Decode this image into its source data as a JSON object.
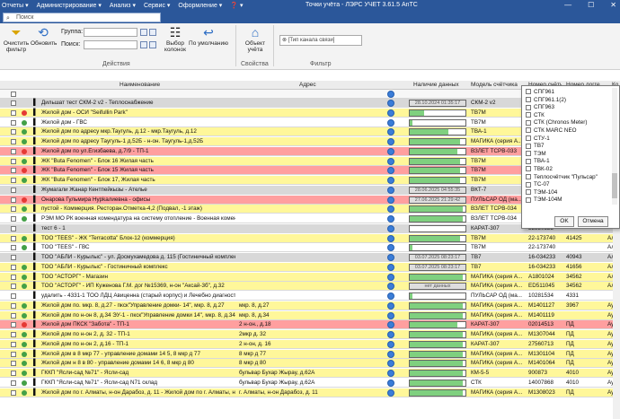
{
  "titlebar": {
    "menus": [
      "Отчеты ▾",
      "Администрирование ▾",
      "Анализ ▾",
      "Сервис ▾",
      "Оформление ▾",
      "❓ ▾"
    ],
    "title": "Точки учёта - ЛЭРС УЧЕТ 3.61.5 AnTC",
    "minimize": "—",
    "maximize": "☐",
    "close": "✕"
  },
  "search": {
    "placeholder": "Поиск"
  },
  "ribbon": {
    "clear_filter": "Очистить фильтр",
    "refresh": "Обновить",
    "group_label": "Группа:",
    "search_label": "Поиск:",
    "show_columns": "Выбор колонок",
    "default": "По умолчанию",
    "object": "Объект учёта",
    "actions_group": "Действия",
    "properties_group": "Свойства",
    "filter_group": "Фильтр",
    "channel_chip": "[Тип канала связи]"
  },
  "columns": {
    "name": "Наименование",
    "address": "Адрес",
    "data": "Наличие данных",
    "model": "Модель счётчика",
    "meter_num": "Номер счётч",
    "log_num": "Номер логгер",
    "last": "Ко"
  },
  "popup": {
    "items": [
      "СПГ961",
      "СПГ961.1(2)",
      "СПГ963",
      "СТК",
      "СТК (Chronos Meter)",
      "СТК MARC NEO",
      "СТУ-1",
      "ТВ7",
      "ТЭМ",
      "ТВА-1",
      "ТВК-02",
      "Теплосчётчик \"Пульсар\"",
      "ТС-07",
      "ТЭМ-104",
      "ТЭМ-104М"
    ],
    "ok": "OK",
    "cancel": "Отмена"
  },
  "rows": [
    {
      "name": "Дильшат тест СКМ-2 v2 - Теплоснабжение",
      "addr": "",
      "bar": "28.10.2024 01:35:17",
      "fill": 0,
      "model": "СКМ-2 v2",
      "num": "",
      "log": "",
      "last": "",
      "bg": "#d8d8d8",
      "dot": ""
    },
    {
      "name": "Жилой дом - ОСИ \"Seifullin Park\"",
      "addr": "",
      "bar": "",
      "fill": 0.25,
      "model": "ТВ7М",
      "num": "",
      "log": "",
      "last": "",
      "bg": "#fff79a",
      "dot": "#e53935"
    },
    {
      "name": "Жилой дом - ГВС",
      "addr": "",
      "bar": "",
      "fill": 0.05,
      "model": "ТВ7М",
      "num": "",
      "log": "",
      "last": "",
      "bg": "#ffffff",
      "dot": "#43a047"
    },
    {
      "name": "Жилой дом по адресу мкр.Таугуль, д.12 - мкр.Таугуль, д.12",
      "addr": "",
      "bar": "",
      "fill": 0.7,
      "model": "ТВА-1",
      "num": "",
      "log": "",
      "last": "",
      "bg": "#fff79a",
      "dot": "#43a047"
    },
    {
      "name": "Жилой дом по адресу Таугуль-1 д.52Б - н-он. Таугуль-1,д.52Б",
      "addr": "",
      "bar": "",
      "fill": 0.9,
      "model": "МАГИКА (серия А...",
      "num": "",
      "log": "",
      "last": "",
      "bg": "#fff79a",
      "dot": "#43a047"
    },
    {
      "name": "Жилой дом по ул.Егизбаева, д.7/9 - ТП-1",
      "addr": "",
      "bar": "",
      "fill": 0.85,
      "model": "ВЗЛЕТ ТСРВ-033",
      "num": "",
      "log": "",
      "last": "",
      "bg": "#ff9f9f",
      "dot": "#e53935"
    },
    {
      "name": "ЖК \"Buta Fenomen\" - Блок 16 Жилая часть",
      "addr": "",
      "bar": "",
      "fill": 0.9,
      "model": "ТВ7М",
      "num": "",
      "log": "",
      "last": "",
      "bg": "#fff79a",
      "dot": "#43a047"
    },
    {
      "name": "ЖК \"Buta Fenomen\" - Блок 15 Жилая часть",
      "addr": "",
      "bar": "",
      "fill": 0.9,
      "model": "ТВ7М",
      "num": "",
      "log": "",
      "last": "",
      "bg": "#ff9f9f",
      "dot": "#e53935"
    },
    {
      "name": "ЖК \"Buta Fenomen\" - Блок 17, Жилая часть",
      "addr": "",
      "bar": "",
      "fill": 0.9,
      "model": "ТВ7М",
      "num": "",
      "log": "",
      "last": "",
      "bg": "#fff79a",
      "dot": "#43a047"
    },
    {
      "name": "Жумагали Жанар Кентпейкызы - Ателье",
      "addr": "",
      "bar": "28.06.2025 04:55:35",
      "fill": 0,
      "model": "ВКТ-7",
      "num": "",
      "log": "",
      "last": "",
      "bg": "#d8d8d8",
      "dot": ""
    },
    {
      "name": "Онарова Гульмира Нурkалиевна - офисы",
      "addr": "",
      "bar": "27.06.2025 21:29:42",
      "fill": 0,
      "model": "ПУЛЬСАР ОД (ма...",
      "num": "",
      "log": "",
      "last": "",
      "bg": "#ff9f9f",
      "dot": "#e53935"
    },
    {
      "name": "пустой - Коммерция. Ресторан.Отметка-4,2 (Подвал, -1 этаж)",
      "addr": "",
      "bar": "",
      "fill": 0.95,
      "model": "ВЗЛЕТ ТСРВ-034",
      "num": "",
      "log": "",
      "last": "",
      "bg": "#fff79a",
      "dot": "#43a047"
    },
    {
      "name": "РЭМ МО РК военная комендатура на систему отопление - Военная комендат",
      "addr": "",
      "bar": "",
      "fill": 0.95,
      "model": "ВЗЛЕТ ТСРВ-034",
      "num": "",
      "log": "",
      "last": "",
      "bg": "#ffffff",
      "dot": "#43a047"
    },
    {
      "name": "тест 6 - 1",
      "addr": "",
      "bar": "",
      "fill": 0,
      "model": "КАРАТ-307",
      "num": "32850525",
      "log": "",
      "last": "",
      "bg": "#d8d8d8",
      "dot": ""
    },
    {
      "name": "ТОО \"TEES\" - ЖК \"Terracotta\" Блок-12 (коммерция)",
      "addr": "",
      "bar": "",
      "fill": 0.9,
      "model": "ТВ7М",
      "num": "22-173740",
      "log": "41425",
      "last": "Ал",
      "bg": "#fff79a",
      "dot": "#43a047"
    },
    {
      "name": "ТОО \"TEES\" - ГВС",
      "addr": "",
      "bar": "",
      "fill": 0.05,
      "model": "ТВ7М",
      "num": "22-173740",
      "log": "",
      "last": "Ал",
      "bg": "#ffffff",
      "dot": "#43a047"
    },
    {
      "name": "ТОО \"АБЛИ - Курылыс\" - ул. Досмухамедова д. 115 (Гостиничный комплекс)",
      "addr": "",
      "bar": "03.07.2025 08:23:17",
      "fill": 0,
      "model": "ТВ7",
      "num": "16-034233",
      "log": "40943",
      "last": "Ал",
      "bg": "#d8d8d8",
      "dot": ""
    },
    {
      "name": "ТОО \"АБЛИ - Курылыс\" - Гостиничный комплекс",
      "addr": "",
      "bar": "03.07.2025 08:23:17",
      "fill": 0,
      "model": "ТВ7",
      "num": "16-034233",
      "log": "41656",
      "last": "Ал",
      "bg": "#fff79a",
      "dot": "#43a047"
    },
    {
      "name": "ТОО \"АСТОРГ\" - Магазин",
      "addr": "",
      "bar": "",
      "fill": 0.95,
      "model": "МАГИКА (серия А...",
      "num": "A1801024",
      "log": "34562",
      "last": "Ал",
      "bg": "#fff79a",
      "dot": "#43a047"
    },
    {
      "name": "ТОО \"АСТОРГ\" - ИП Куженова Г.М. дог №15369, н-он \"Аксай-3б\", д.32",
      "addr": "",
      "bar": "нет данных",
      "fill": 0,
      "model": "МАГИКА (серия А...",
      "num": "ED511045",
      "log": "34562",
      "last": "Ал",
      "bg": "#fff79a",
      "dot": "#43a047"
    },
    {
      "name": "удалить - 4331-1 ТОО ЛДЦ Авиценна (старый корпус) и Лечебно диагност",
      "addr": "",
      "bar": "",
      "fill": 0.05,
      "model": "ПУЛЬСАР ОД (ма...",
      "num": "10281534",
      "log": "4331",
      "last": "",
      "bg": "#ffffff",
      "dot": ""
    },
    {
      "name": "Жилой дом по. мкр. 8, д.27 - пкск\"Управление домки- 14\", мкр. 8, д.27",
      "addr": "мкр. 8, д.27",
      "bar": "",
      "fill": 0.95,
      "model": "МАГИКА (серия А...",
      "num": "M1401127",
      "log": "3967",
      "last": "Ау",
      "bg": "#fff79a",
      "dot": "#43a047"
    },
    {
      "name": "Жилой дом по н-он 8, д.34     ЭУ-1 - пкск\"Управление домки 14\", мкр. 8, д.34",
      "addr": "мкр. 8, д.34",
      "bar": "",
      "fill": 0.95,
      "model": "МАГИКА (серия А...",
      "num": "M1401119",
      "log": "",
      "last": "Ау",
      "bg": "#fff79a",
      "dot": "#43a047"
    },
    {
      "name": "Жилой дом ПКСК \"Забота\" - ТП-1",
      "addr": "2 н-он., д.18",
      "bar": "",
      "fill": 0.85,
      "model": "КАРАТ-307",
      "num": "02014513",
      "log": "ПД",
      "last": "Ау",
      "bg": "#ff9f9f",
      "dot": "#e53935"
    },
    {
      "name": "Жилой дом по н-он 2, д. 32 - ТП-1",
      "addr": "2мкр д. 32",
      "bar": "",
      "fill": 0.95,
      "model": "МАГИКА (серия А...",
      "num": "M1307044",
      "log": "ПД",
      "last": "Ау",
      "bg": "#fff79a",
      "dot": "#43a047"
    },
    {
      "name": "Жилой дом по н-он 2, д.16 - ТП-1",
      "addr": "2 н-он, д. 16",
      "bar": "",
      "fill": 0.95,
      "model": "КАРАТ-307",
      "num": "27560713",
      "log": "ПД",
      "last": "Ау",
      "bg": "#fff79a",
      "dot": "#43a047"
    },
    {
      "name": "Жилой дом в 8 мкр 77 - управление домами 14 5, 8 мкр д 77",
      "addr": "8 мкр д 77",
      "bar": "",
      "fill": 0.95,
      "model": "МАГИКА (серия А...",
      "num": "M1301104",
      "log": "ПД",
      "last": "Ау",
      "bg": "#fff79a",
      "dot": "#43a047"
    },
    {
      "name": "Жилой дом н 8 в 80 - управление домами 14 6, 8 мкр д 80",
      "addr": "8 мкр д 80",
      "bar": "",
      "fill": 0.95,
      "model": "МАГИКА (серия А...",
      "num": "M1401064",
      "log": "ПД",
      "last": "Ау",
      "bg": "#fff79a",
      "dot": "#43a047"
    },
    {
      "name": "ГККП \"Ясли-сад №71\" - Ясли-сад",
      "addr": "бульвар Бухар Жырау, д.62А",
      "bar": "",
      "fill": 0.95,
      "model": "КМ-5-5",
      "num": "900873",
      "log": "4010",
      "last": "Ау",
      "bg": "#fff79a",
      "dot": "#43a047"
    },
    {
      "name": "ГККП \"Ясли-сад №71\" - Ясли-сад N71 склад",
      "addr": "бульвар Бухар Жырау, д.62А",
      "bar": "",
      "fill": 0.95,
      "model": "СТК",
      "num": "14007868",
      "log": "4010",
      "last": "Ау",
      "bg": "#ffffff",
      "dot": "#43a047"
    },
    {
      "name": "Жилой дом по г. Алматы, н-он Дарабоз, д. 11 - Жилой дом по г. Алматы, н-он",
      "addr": "г. Алматы, н-он Дарабоз, д. 11",
      "bar": "",
      "fill": 0.95,
      "model": "МАГИКА (серия А...",
      "num": "M1308023",
      "log": "ПД",
      "last": "Ау",
      "bg": "#fff79a",
      "dot": "#43a047"
    }
  ]
}
